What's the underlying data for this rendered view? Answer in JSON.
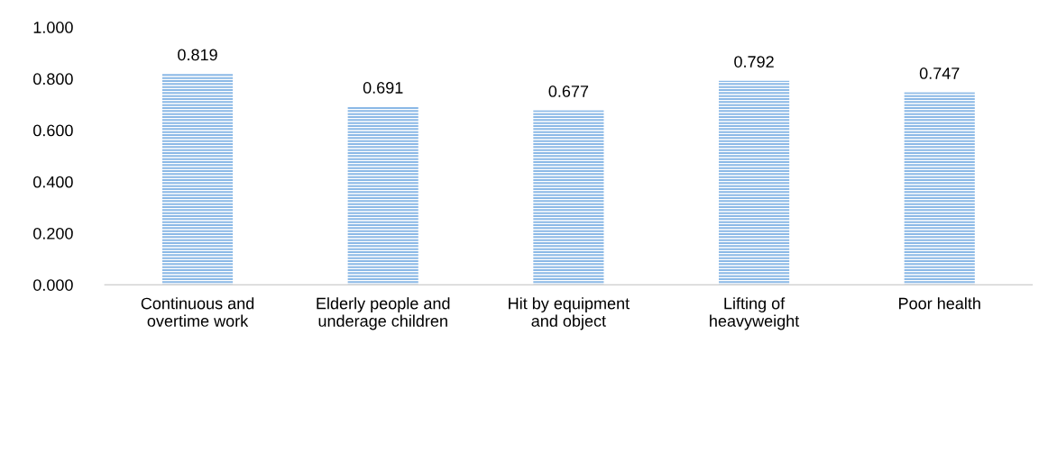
{
  "chart_data": {
    "type": "bar",
    "categories": [
      "Continuous and\novertime work",
      "Elderly people and\nunderage children",
      "Hit by equipment\nand object",
      "Lifting of\nheavyweight",
      "Poor health"
    ],
    "values": [
      0.819,
      0.691,
      0.677,
      0.792,
      0.747
    ],
    "color": "#8ab8e6",
    "ylim": [
      0,
      1
    ],
    "yticks": [
      {
        "value": 0,
        "label": "0.000"
      },
      {
        "value": 0.2,
        "label": "0.200"
      },
      {
        "value": 0.4,
        "label": "0.400"
      },
      {
        "value": 0.6,
        "label": "0.600"
      },
      {
        "value": 0.8,
        "label": "0.800"
      },
      {
        "value": 1,
        "label": "1.000"
      }
    ],
    "data_labels": true,
    "grid": false,
    "legend": false
  }
}
